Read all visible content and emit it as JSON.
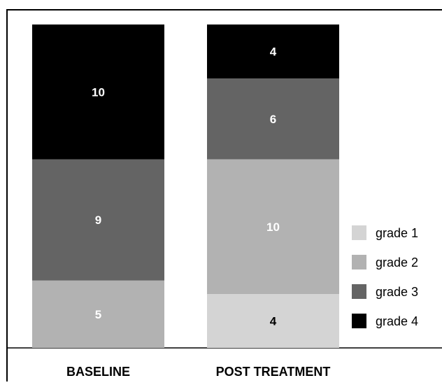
{
  "chart_data": {
    "type": "bar",
    "stacked": true,
    "categories": [
      "BASELINE",
      "POST TREATMENT"
    ],
    "series": [
      {
        "name": "grade 1",
        "values": [
          0,
          4
        ],
        "color": "#d4d4d4",
        "label_color": "#000000"
      },
      {
        "name": "grade 2",
        "values": [
          5,
          10
        ],
        "color": "#b2b2b2",
        "label_color": "#ffffff"
      },
      {
        "name": "grade 3",
        "values": [
          9,
          6
        ],
        "color": "#646464",
        "label_color": "#ffffff"
      },
      {
        "name": "grade 4",
        "values": [
          10,
          4
        ],
        "color": "#000000",
        "label_color": "#ffffff"
      }
    ],
    "ylim": [
      0,
      24
    ],
    "grid": false,
    "legend": "right"
  }
}
